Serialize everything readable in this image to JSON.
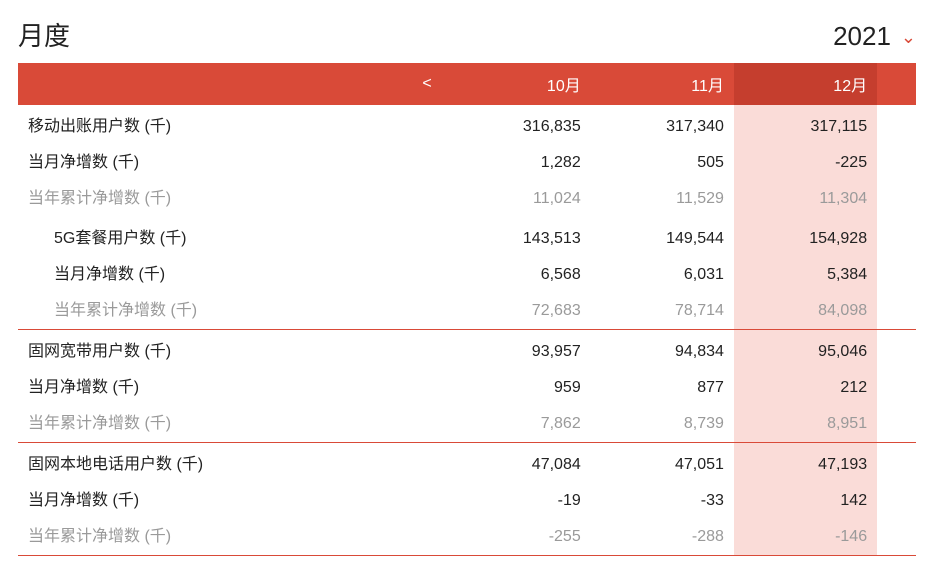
{
  "header": {
    "title": "月度",
    "year": "2021"
  },
  "table": {
    "scroll_left": "<",
    "months": [
      "10月",
      "11月",
      "12月"
    ],
    "highlight_index": 2,
    "colors": {
      "header_bg": "#d94a38",
      "header_highlight_bg": "#c53e2e",
      "body_highlight_bg": "#fadcd8",
      "separator": "#d94a38",
      "muted_text": "#9a9a9a",
      "text": "#222222",
      "background": "#ffffff"
    },
    "groups": [
      {
        "rows": [
          {
            "label": "移动出账用户数 (千)",
            "values": [
              "316,835",
              "317,340",
              "317,115"
            ],
            "indent": false,
            "muted": false
          },
          {
            "label": "当月净增数 (千)",
            "values": [
              "1,282",
              "505",
              "-225"
            ],
            "indent": false,
            "muted": false
          },
          {
            "label": "当年累计净增数 (千)",
            "values": [
              "11,024",
              "11,529",
              "11,304"
            ],
            "indent": false,
            "muted": true
          },
          {
            "label": "5G套餐用户数 (千)",
            "values": [
              "143,513",
              "149,544",
              "154,928"
            ],
            "indent": true,
            "muted": false
          },
          {
            "label": "当月净增数 (千)",
            "values": [
              "6,568",
              "6,031",
              "5,384"
            ],
            "indent": true,
            "muted": false
          },
          {
            "label": "当年累计净增数 (千)",
            "values": [
              "72,683",
              "78,714",
              "84,098"
            ],
            "indent": true,
            "muted": true
          }
        ]
      },
      {
        "rows": [
          {
            "label": "固网宽带用户数 (千)",
            "values": [
              "93,957",
              "94,834",
              "95,046"
            ],
            "indent": false,
            "muted": false
          },
          {
            "label": "当月净增数 (千)",
            "values": [
              "959",
              "877",
              "212"
            ],
            "indent": false,
            "muted": false
          },
          {
            "label": "当年累计净增数 (千)",
            "values": [
              "7,862",
              "8,739",
              "8,951"
            ],
            "indent": false,
            "muted": true
          }
        ]
      },
      {
        "rows": [
          {
            "label": "固网本地电话用户数 (千)",
            "values": [
              "47,084",
              "47,051",
              "47,193"
            ],
            "indent": false,
            "muted": false
          },
          {
            "label": "当月净增数 (千)",
            "values": [
              "-19",
              "-33",
              "142"
            ],
            "indent": false,
            "muted": false
          },
          {
            "label": "当年累计净增数 (千)",
            "values": [
              "-255",
              "-288",
              "-146"
            ],
            "indent": false,
            "muted": true
          }
        ]
      }
    ]
  }
}
